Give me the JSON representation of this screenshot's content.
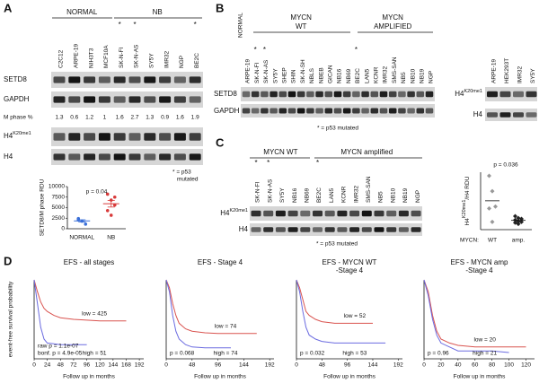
{
  "panel_a": {
    "label": "A",
    "groups": [
      "NORMAL",
      "NB"
    ],
    "lanes": [
      {
        "name": "C2C12"
      },
      {
        "name": "ARPE-19"
      },
      {
        "name": "NIH3T3"
      },
      {
        "name": "MCF10A"
      },
      {
        "name": "SK-N-FI",
        "mark": "*"
      },
      {
        "name": "SK-N-AS",
        "mark": "*"
      },
      {
        "name": "SY5Y"
      },
      {
        "name": "IMR32"
      },
      {
        "name": "NGP"
      },
      {
        "name": "BE2C",
        "mark": "*"
      }
    ],
    "rows": [
      "SETD8",
      "GAPDH"
    ],
    "mphase_label": "M phase %",
    "mphase": [
      1.3,
      0.6,
      1.2,
      1.0,
      1.6,
      2.7,
      1.3,
      0.9,
      1.6,
      1.9
    ],
    "rows2": [
      {
        "base": "H4",
        "sup": "K20me1"
      },
      {
        "base": "H4"
      }
    ],
    "note": [
      "* = p53",
      "mutated"
    ],
    "chart": {
      "type": "scatter",
      "ylabel": "SETD8/M phase RDU",
      "annotation": "p = 0.04",
      "categories": [
        "NORMAL",
        "NB"
      ],
      "ylim": [
        0,
        10000
      ],
      "yticks": [
        0,
        2500,
        5000,
        7500,
        10000
      ],
      "series": [
        {
          "name": "NORMAL",
          "color": "#3a6fd8",
          "values": [
            2400,
            1800,
            1100,
            2100
          ]
        },
        {
          "name": "NB",
          "color": "#d83a3a",
          "values": [
            8200,
            6800,
            5600,
            4300,
            3200,
            7500
          ]
        }
      ]
    }
  },
  "panel_b": {
    "label": "B",
    "normal": "NORMAL",
    "groups": [
      [
        "MYCN",
        "WT"
      ],
      [
        "MYCN",
        "AMPLIFIED"
      ]
    ],
    "lanes": [
      {
        "name": "ARPE-19"
      },
      {
        "name": "SK-N-FI",
        "mark": "*"
      },
      {
        "name": "SK-N-AS",
        "mark": "*"
      },
      {
        "name": "SY5Y"
      },
      {
        "name": "SHEP"
      },
      {
        "name": "SHIN"
      },
      {
        "name": "SK-N-SH"
      },
      {
        "name": "NBLS"
      },
      {
        "name": "NBEB"
      },
      {
        "name": "GICAN"
      },
      {
        "name": "NB16"
      },
      {
        "name": "NB69"
      },
      {
        "name": "BE2C",
        "mark": "*"
      },
      {
        "name": "LAN5"
      },
      {
        "name": "KCNR"
      },
      {
        "name": "IMR32"
      },
      {
        "name": "SMS-SAN"
      },
      {
        "name": "NB5"
      },
      {
        "name": "NB10"
      },
      {
        "name": "NB19"
      },
      {
        "name": "NGP"
      }
    ],
    "rows": [
      "SETD8",
      "GAPDH"
    ],
    "note": "* = p53 mutated",
    "side_lanes": [
      "ARPE-19",
      "HEK293T",
      "IMR32",
      "SY5Y"
    ],
    "side_rows": [
      {
        "base": "H4",
        "sup": "K20me1"
      },
      {
        "base": "H4"
      }
    ]
  },
  "panel_c": {
    "label": "C",
    "groups": [
      "MYCN WT",
      "MYCN amplified"
    ],
    "lanes": [
      {
        "name": "SK-N-FI",
        "mark": "*"
      },
      {
        "name": "SK-N-AS",
        "mark": "*"
      },
      {
        "name": "SY5Y"
      },
      {
        "name": "NB16"
      },
      {
        "name": "NB69"
      },
      {
        "name": "BE2C",
        "mark": "*"
      },
      {
        "name": "LAN5"
      },
      {
        "name": "KCNR"
      },
      {
        "name": "IMR32"
      },
      {
        "name": "SMS-SAN"
      },
      {
        "name": "NB5"
      },
      {
        "name": "NB10"
      },
      {
        "name": "NB19"
      },
      {
        "name": "NGP"
      }
    ],
    "rows": [
      {
        "base": "H4",
        "sup": "K20me1"
      },
      {
        "base": "H4"
      }
    ],
    "note": "* = p53 mutated",
    "chart": {
      "type": "scatter",
      "ylabel": {
        "base": "H4",
        "sup": "K20me1",
        "rest": "/H4 RDU"
      },
      "annotation": "p = 0.036",
      "xlabel": "MYCN:",
      "categories": [
        "WT",
        "amp."
      ],
      "series": [
        {
          "name": "WT",
          "color": "#999999",
          "values": [
            1.4,
            1.0,
            0.6,
            0.55,
            0.2
          ]
        },
        {
          "name": "amp.",
          "color": "#222222",
          "values": [
            0.35,
            0.3,
            0.28,
            0.25,
            0.22,
            0.2,
            0.18,
            0.15
          ]
        }
      ]
    }
  },
  "panel_d": {
    "label": "D",
    "ylabel": "event-free survival probability",
    "xlabel": "Follow up in months",
    "charts": [
      {
        "type": "line",
        "title": [
          "EFS - all stages"
        ],
        "xlim": [
          0,
          200
        ],
        "ylim": [
          0,
          1
        ],
        "xticks": [
          0,
          24,
          48,
          72,
          96,
          120,
          144,
          168,
          192
        ],
        "annotations": [
          "raw p = 1.1e-07",
          "bonf. p = 4.9e-05"
        ],
        "series": [
          {
            "name": "low = 425",
            "color": "#d9534f",
            "x": [
              0,
              6,
              12,
              18,
              24,
              36,
              48,
              72,
              96,
              120,
              144,
              168
            ],
            "values": [
              1,
              0.85,
              0.72,
              0.64,
              0.6,
              0.55,
              0.52,
              0.5,
              0.49,
              0.48,
              0.48,
              0.48
            ]
          },
          {
            "name": "high = 51",
            "color": "#6b6be0",
            "x": [
              0,
              6,
              12,
              18,
              24,
              36,
              48,
              72,
              96
            ],
            "values": [
              1,
              0.7,
              0.4,
              0.25,
              0.2,
              0.19,
              0.18,
              0.18,
              0.18
            ]
          }
        ]
      },
      {
        "type": "line",
        "title": [
          "EFS - Stage 4"
        ],
        "xlim": [
          0,
          200
        ],
        "ylim": [
          0,
          1
        ],
        "xticks": [
          0,
          48,
          96,
          144,
          192
        ],
        "annotations": [
          "p = 0.068"
        ],
        "series": [
          {
            "name": "low = 74",
            "color": "#d9534f",
            "x": [
              0,
              6,
              12,
              18,
              24,
              36,
              48,
              72,
              96,
              120,
              144,
              168
            ],
            "values": [
              1,
              0.9,
              0.7,
              0.55,
              0.45,
              0.38,
              0.35,
              0.33,
              0.32,
              0.32,
              0.32,
              0.32
            ]
          },
          {
            "name": "high = 74",
            "color": "#6b6be0",
            "x": [
              0,
              6,
              12,
              18,
              24,
              36,
              48,
              72,
              96,
              120
            ],
            "values": [
              1,
              0.85,
              0.55,
              0.35,
              0.25,
              0.18,
              0.15,
              0.14,
              0.14,
              0.14
            ]
          }
        ]
      },
      {
        "type": "line",
        "title": [
          "EFS - MYCN WT",
          "-Stage 4"
        ],
        "xlim": [
          0,
          200
        ],
        "ylim": [
          0,
          1
        ],
        "xticks": [
          0,
          48,
          96,
          144,
          192
        ],
        "annotations": [
          "p = 0.032"
        ],
        "series": [
          {
            "name": "low = 52",
            "color": "#d9534f",
            "x": [
              0,
              6,
              12,
              18,
              24,
              36,
              48,
              72,
              96,
              120,
              144
            ],
            "values": [
              1,
              0.9,
              0.75,
              0.6,
              0.55,
              0.5,
              0.47,
              0.45,
              0.45,
              0.45,
              0.45
            ]
          },
          {
            "name": "high = 53",
            "color": "#6b6be0",
            "x": [
              0,
              6,
              12,
              18,
              24,
              36,
              48,
              72,
              96,
              120,
              144,
              168
            ],
            "values": [
              1,
              0.85,
              0.6,
              0.4,
              0.3,
              0.25,
              0.22,
              0.2,
              0.2,
              0.2,
              0.2,
              0.2
            ]
          }
        ]
      },
      {
        "type": "line",
        "title": [
          "EFS - MYCN amp",
          "-Stage 4"
        ],
        "xlim": [
          0,
          130
        ],
        "ylim": [
          0,
          1
        ],
        "xticks": [
          0,
          20,
          40,
          60,
          80,
          100,
          120
        ],
        "annotations": [
          "p = 0.96"
        ],
        "series": [
          {
            "name": "low = 20",
            "color": "#d9534f",
            "x": [
              0,
              5,
              10,
              15,
              20,
              30,
              40,
              60,
              80,
              100,
              120
            ],
            "values": [
              1,
              0.85,
              0.55,
              0.35,
              0.25,
              0.2,
              0.17,
              0.15,
              0.15,
              0.15,
              0.15
            ]
          },
          {
            "name": "high = 21",
            "color": "#6b6be0",
            "x": [
              0,
              5,
              10,
              15,
              20,
              30,
              40,
              60,
              80,
              100
            ],
            "values": [
              1,
              0.8,
              0.5,
              0.3,
              0.2,
              0.15,
              0.1,
              0.1,
              0.1,
              0.08
            ]
          }
        ]
      }
    ]
  }
}
